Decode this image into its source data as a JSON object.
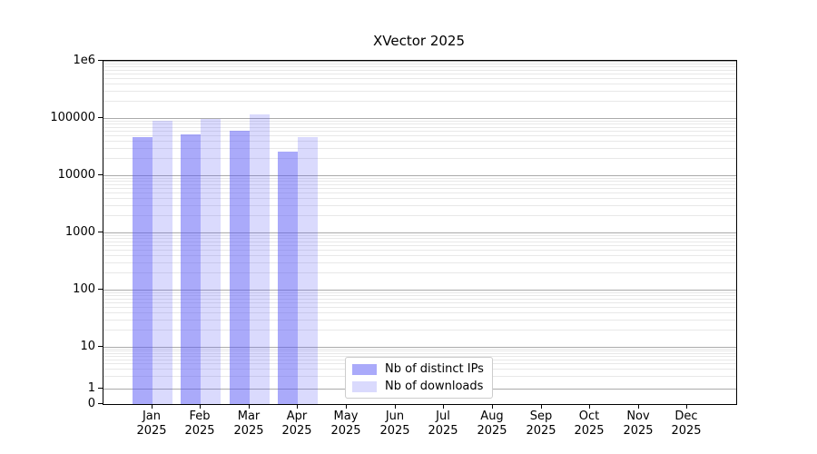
{
  "chart_data": {
    "type": "bar",
    "title": "XVector 2025",
    "xlabel": "",
    "ylabel": "",
    "yscale": "symlog",
    "ylim": [
      0,
      1000000
    ],
    "grid": "horizontal, major and minor",
    "legend_position": "lower center",
    "categories": [
      "Jan 2025",
      "Feb 2025",
      "Mar 2025",
      "Apr 2025",
      "May 2025",
      "Jun 2025",
      "Jul 2025",
      "Aug 2025",
      "Sep 2025",
      "Oct 2025",
      "Nov 2025",
      "Dec 2025"
    ],
    "yticks": [
      {
        "label": "1e6",
        "value": 1000000
      },
      {
        "label": "100000",
        "value": 100000
      },
      {
        "label": "10000",
        "value": 10000
      },
      {
        "label": "1000",
        "value": 1000
      },
      {
        "label": "100",
        "value": 100
      },
      {
        "label": "10",
        "value": 10
      },
      {
        "label": "1",
        "value": 1
      },
      {
        "label": "0",
        "value": 0
      }
    ],
    "series": [
      {
        "key": "distinct-ips",
        "name": "Nb of distinct IPs",
        "color": "#5555f5",
        "alpha": 0.5,
        "values": [
          46000,
          52000,
          60000,
          26000,
          null,
          null,
          null,
          null,
          null,
          null,
          null,
          null
        ]
      },
      {
        "key": "downloads",
        "name": "Nb of downloads",
        "color": "#5555f5",
        "alpha": 0.22,
        "values": [
          90000,
          98000,
          115000,
          46000,
          null,
          null,
          null,
          null,
          null,
          null,
          null,
          null
        ]
      }
    ]
  }
}
